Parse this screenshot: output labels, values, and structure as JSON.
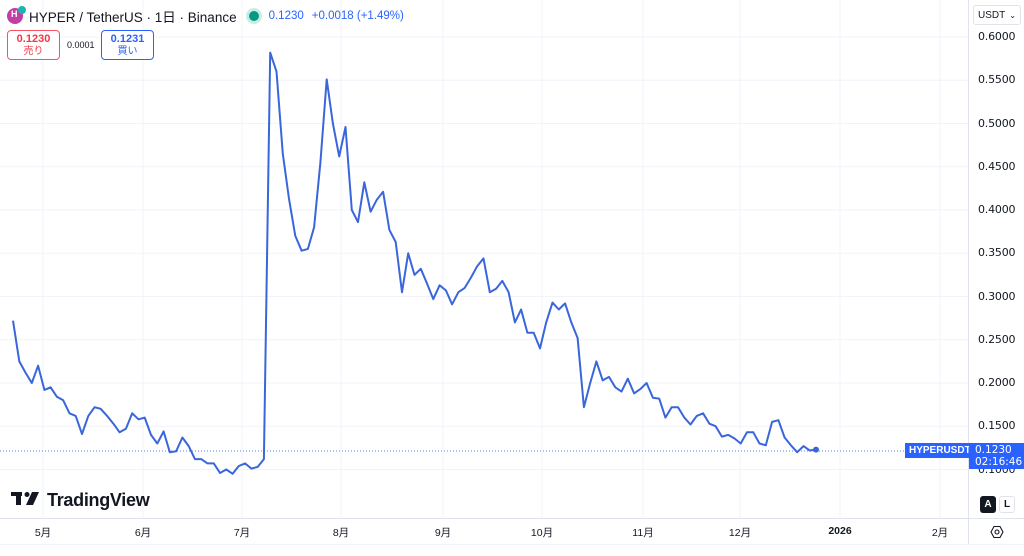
{
  "header": {
    "symbol_icon_letter": "H",
    "title": "HYPER / TetherUS · 1日 · Binance",
    "last_price": "0.1230",
    "change": "+0.0018 (+1.49%)",
    "market_status": "open"
  },
  "quote": {
    "sell_price": "0.1230",
    "sell_label": "売り",
    "spread": "0.0001",
    "buy_price": "0.1231",
    "buy_label": "買い"
  },
  "price_axis": {
    "currency": "USDT",
    "ticks": [
      "0.6000",
      "0.5500",
      "0.5000",
      "0.4500",
      "0.4000",
      "0.3500",
      "0.3000",
      "0.2500",
      "0.2000",
      "0.1500",
      "0.1000"
    ]
  },
  "time_axis": {
    "ticks": [
      "5月",
      "6月",
      "7月",
      "8月",
      "9月",
      "10月",
      "11月",
      "12月",
      "2026",
      "2月"
    ]
  },
  "price_tag": {
    "symbol": "HYPERUSDT",
    "price": "0.1230",
    "countdown": "02:16:46"
  },
  "scale_buttons": {
    "auto": "A",
    "log": "L"
  },
  "branding": {
    "logo_mark": "TV",
    "logo_text": "TradingView"
  },
  "colors": {
    "line": "#3a66db",
    "accent": "#2962ff",
    "sell": "#f23645",
    "grid": "#f0f3fa"
  },
  "chart_data": {
    "type": "line",
    "title": "HYPER / TetherUS · 1日 · Binance",
    "xlabel": "",
    "ylabel": "USDT",
    "ylim": [
      0.09,
      0.61
    ],
    "grid": true,
    "legend_position": "none",
    "x_tick_labels": [
      "5月",
      "6月",
      "7月",
      "8月",
      "9月",
      "10月",
      "11月",
      "12月",
      "2026",
      "2月"
    ],
    "current_price": 0.123,
    "series": [
      {
        "name": "HYPERUSDT",
        "x": [
          "04-28",
          "04-29",
          "04-30",
          "05-01",
          "05-02",
          "05-03",
          "05-04",
          "05-05",
          "05-06",
          "05-07",
          "05-09",
          "05-11",
          "05-13",
          "05-15",
          "05-17",
          "05-19",
          "05-21",
          "05-23",
          "05-25",
          "05-27",
          "05-29",
          "05-31",
          "06-02",
          "06-04",
          "06-06",
          "06-08",
          "06-10",
          "06-12",
          "06-14",
          "06-16",
          "06-18",
          "06-20",
          "06-22",
          "06-24",
          "06-26",
          "06-28",
          "06-30",
          "07-02",
          "07-04",
          "07-06",
          "07-08",
          "07-09",
          "07-10",
          "07-12",
          "07-14",
          "07-16",
          "07-18",
          "07-20",
          "07-22",
          "07-24",
          "07-25",
          "07-26",
          "07-27",
          "07-29",
          "07-31",
          "08-02",
          "08-03",
          "08-05",
          "08-07",
          "08-09",
          "08-11",
          "08-13",
          "08-15",
          "08-17",
          "08-19",
          "08-21",
          "08-23",
          "08-25",
          "08-27",
          "08-29",
          "08-31",
          "09-02",
          "09-04",
          "09-06",
          "09-08",
          "09-10",
          "09-12",
          "09-14",
          "09-16",
          "09-18",
          "09-20",
          "09-22",
          "09-24",
          "09-26",
          "09-28",
          "09-30",
          "10-02",
          "10-04",
          "10-06",
          "10-08",
          "10-10",
          "10-11",
          "10-13",
          "10-15",
          "10-17",
          "10-19",
          "10-21",
          "10-23",
          "10-25",
          "10-27",
          "10-29",
          "10-31",
          "11-02",
          "11-04",
          "11-06",
          "11-08",
          "11-10",
          "11-12",
          "11-14",
          "11-16",
          "11-18",
          "11-20",
          "11-22",
          "11-24",
          "11-26",
          "11-28",
          "11-30",
          "12-02",
          "12-04",
          "12-06",
          "12-08",
          "12-10",
          "12-12",
          "12-14",
          "12-16",
          "12-18",
          "12-20",
          "12-22",
          "12-24"
        ],
        "values": [
          0.272,
          0.225,
          0.212,
          0.2,
          0.22,
          0.192,
          0.195,
          0.184,
          0.18,
          0.165,
          0.162,
          0.141,
          0.162,
          0.172,
          0.17,
          0.162,
          0.153,
          0.143,
          0.147,
          0.165,
          0.158,
          0.16,
          0.14,
          0.13,
          0.144,
          0.12,
          0.121,
          0.137,
          0.127,
          0.112,
          0.112,
          0.107,
          0.107,
          0.096,
          0.1,
          0.095,
          0.104,
          0.107,
          0.101,
          0.103,
          0.112,
          0.582,
          0.56,
          0.465,
          0.413,
          0.37,
          0.353,
          0.355,
          0.38,
          0.455,
          0.551,
          0.5,
          0.462,
          0.496,
          0.4,
          0.386,
          0.432,
          0.398,
          0.412,
          0.421,
          0.377,
          0.363,
          0.305,
          0.35,
          0.325,
          0.332,
          0.315,
          0.297,
          0.313,
          0.307,
          0.291,
          0.305,
          0.31,
          0.322,
          0.335,
          0.344,
          0.305,
          0.309,
          0.318,
          0.305,
          0.27,
          0.285,
          0.258,
          0.258,
          0.24,
          0.27,
          0.293,
          0.285,
          0.292,
          0.27,
          0.252,
          0.172,
          0.2,
          0.225,
          0.203,
          0.207,
          0.195,
          0.19,
          0.205,
          0.188,
          0.193,
          0.2,
          0.183,
          0.182,
          0.16,
          0.172,
          0.172,
          0.16,
          0.152,
          0.162,
          0.165,
          0.153,
          0.15,
          0.138,
          0.14,
          0.136,
          0.13,
          0.143,
          0.143,
          0.13,
          0.128,
          0.155,
          0.157,
          0.137,
          0.128,
          0.12,
          0.127,
          0.122,
          0.123
        ]
      }
    ]
  }
}
